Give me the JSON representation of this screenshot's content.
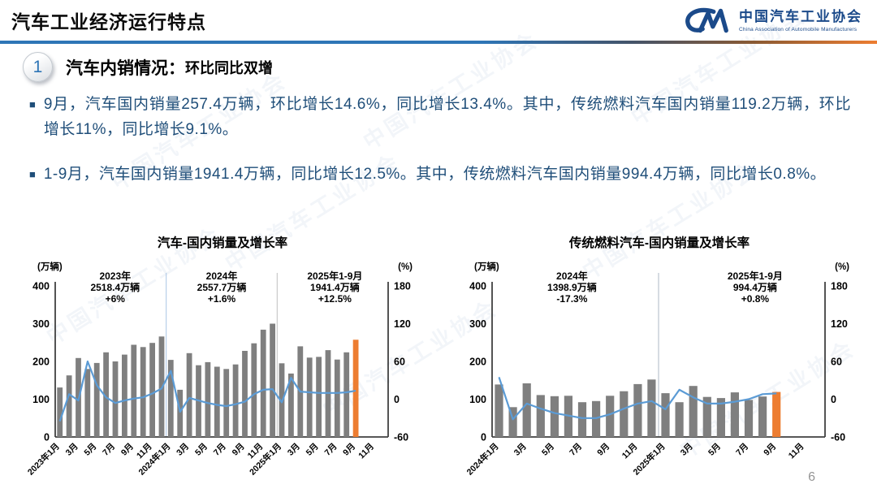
{
  "header": {
    "title": "汽车工业经济运行特点",
    "logo": {
      "org_cn": "中国汽车工业协会",
      "org_en": "China Association of Automobile Manufacturers"
    }
  },
  "section": {
    "number": "1",
    "title": "汽车内销情况：",
    "subtitle": "环比同比双增"
  },
  "bullets": [
    "9月，汽车国内销量257.4万辆，环比增长14.6%，同比增长13.4%。其中，传统燃料汽车国内销量119.2万辆，环比增长11%，同比增长9.1%。",
    "1-9月，汽车国内销量1941.4万辆，同比增长12.5%。其中，传统燃料汽车国内销量994.4万辆，同比增长0.8%。"
  ],
  "watermark": {
    "cn": "中国汽车工业协会"
  },
  "page_number": "6",
  "colors": {
    "bar": "#7f7f7f",
    "bar_highlight": "#ed7d31",
    "line": "#5b9bd5",
    "axis": "#404040",
    "accent_blue": "#2e75b6",
    "text_dark_blue": "#1f4e79",
    "negative_red": "#ff0000"
  },
  "chart_data": [
    {
      "type": "bar+line",
      "title": "汽车-国内销量及增长率",
      "unit_left": "(万辆)",
      "unit_right": "(%)",
      "ylim_left": [
        0,
        400
      ],
      "yticks_left": [
        0,
        100,
        200,
        300,
        400
      ],
      "ylim_right": [
        -60,
        180
      ],
      "yticks_right": [
        -60,
        0,
        60,
        120,
        180
      ],
      "slots": 36,
      "x_tick_labels": [
        "2023年1月",
        "3月",
        "5月",
        "7月",
        "9月",
        "11月",
        "2024年1月",
        "3月",
        "5月",
        "7月",
        "9月",
        "11月",
        "2025年1月",
        "3月",
        "5月",
        "7月",
        "9月",
        "11月"
      ],
      "bars": {
        "highlight_last": true,
        "values": [
          131,
          163,
          209,
          180,
          196,
          224,
          200,
          218,
          244,
          238,
          249,
          266,
          204,
          125,
          222,
          190,
          198,
          186,
          180,
          192,
          228,
          248,
          284,
          300,
          195,
          168,
          240,
          210,
          212,
          230,
          205,
          224,
          257.4
        ]
      },
      "line": {
        "values": [
          -35,
          8,
          -2,
          60,
          22,
          3,
          -6,
          -2,
          1,
          3,
          9,
          17,
          45,
          -20,
          2,
          -2,
          -6,
          -9,
          -11,
          -8,
          -4,
          8,
          15,
          16,
          -5,
          34,
          12,
          11,
          10,
          10,
          10,
          11,
          13.4
        ]
      },
      "annotations": [
        {
          "period": "2023年",
          "total": "2518.4万辆",
          "growth": "+6%",
          "growth_color": "#000000",
          "x_frac": 0.18
        },
        {
          "period": "2024年",
          "total": "2557.7万辆",
          "growth": "+1.6%",
          "growth_color": "#000000",
          "x_frac": 0.5
        },
        {
          "period": "2025年1-9月",
          "total": "1941.4万辆",
          "growth": "+12.5%",
          "growth_color": "#000000",
          "x_frac": 0.84
        }
      ],
      "dividers": [
        {
          "slot": 12,
          "color": "#a9c4e4"
        },
        {
          "slot": 24,
          "color": "#bfbfbf"
        }
      ]
    },
    {
      "type": "bar+line",
      "title": "传统燃料汽车-国内销量及增长率",
      "unit_left": "(万辆)",
      "unit_right": "(%)",
      "ylim_left": [
        0,
        400
      ],
      "yticks_left": [
        0,
        100,
        200,
        300,
        400
      ],
      "ylim_right": [
        -60,
        180
      ],
      "yticks_right": [
        -60,
        0,
        60,
        120,
        180
      ],
      "slots": 24,
      "x_tick_labels": [
        "2024年1月",
        "3月",
        "5月",
        "7月",
        "9月",
        "11月",
        "2025年1月",
        "3月",
        "5月",
        "7月",
        "9月",
        "11月"
      ],
      "bars": {
        "highlight_last": true,
        "values": [
          139,
          79,
          142,
          111,
          108,
          109,
          92,
          95,
          109,
          121,
          140,
          152,
          116,
          92,
          135,
          106,
          103,
          118,
          98,
          107,
          119.2
        ]
      },
      "line": {
        "values": [
          35,
          -32,
          -7,
          -15,
          -22,
          -26,
          -30,
          -30,
          -24,
          -15,
          -7,
          -3,
          -16,
          15,
          3,
          -7,
          -7,
          -4,
          0,
          8,
          9.1
        ]
      },
      "annotations": [
        {
          "period": "2024年",
          "total": "1398.9万辆",
          "growth": "-17.3%",
          "growth_color": "#ff0000",
          "x_frac": 0.24
        },
        {
          "period": "2025年1-9月",
          "total": "994.4万辆",
          "growth": "+0.8%",
          "growth_color": "#000000",
          "x_frac": 0.79
        }
      ],
      "dividers": [
        {
          "slot": 12,
          "color": "#aeb8c4"
        }
      ]
    }
  ]
}
